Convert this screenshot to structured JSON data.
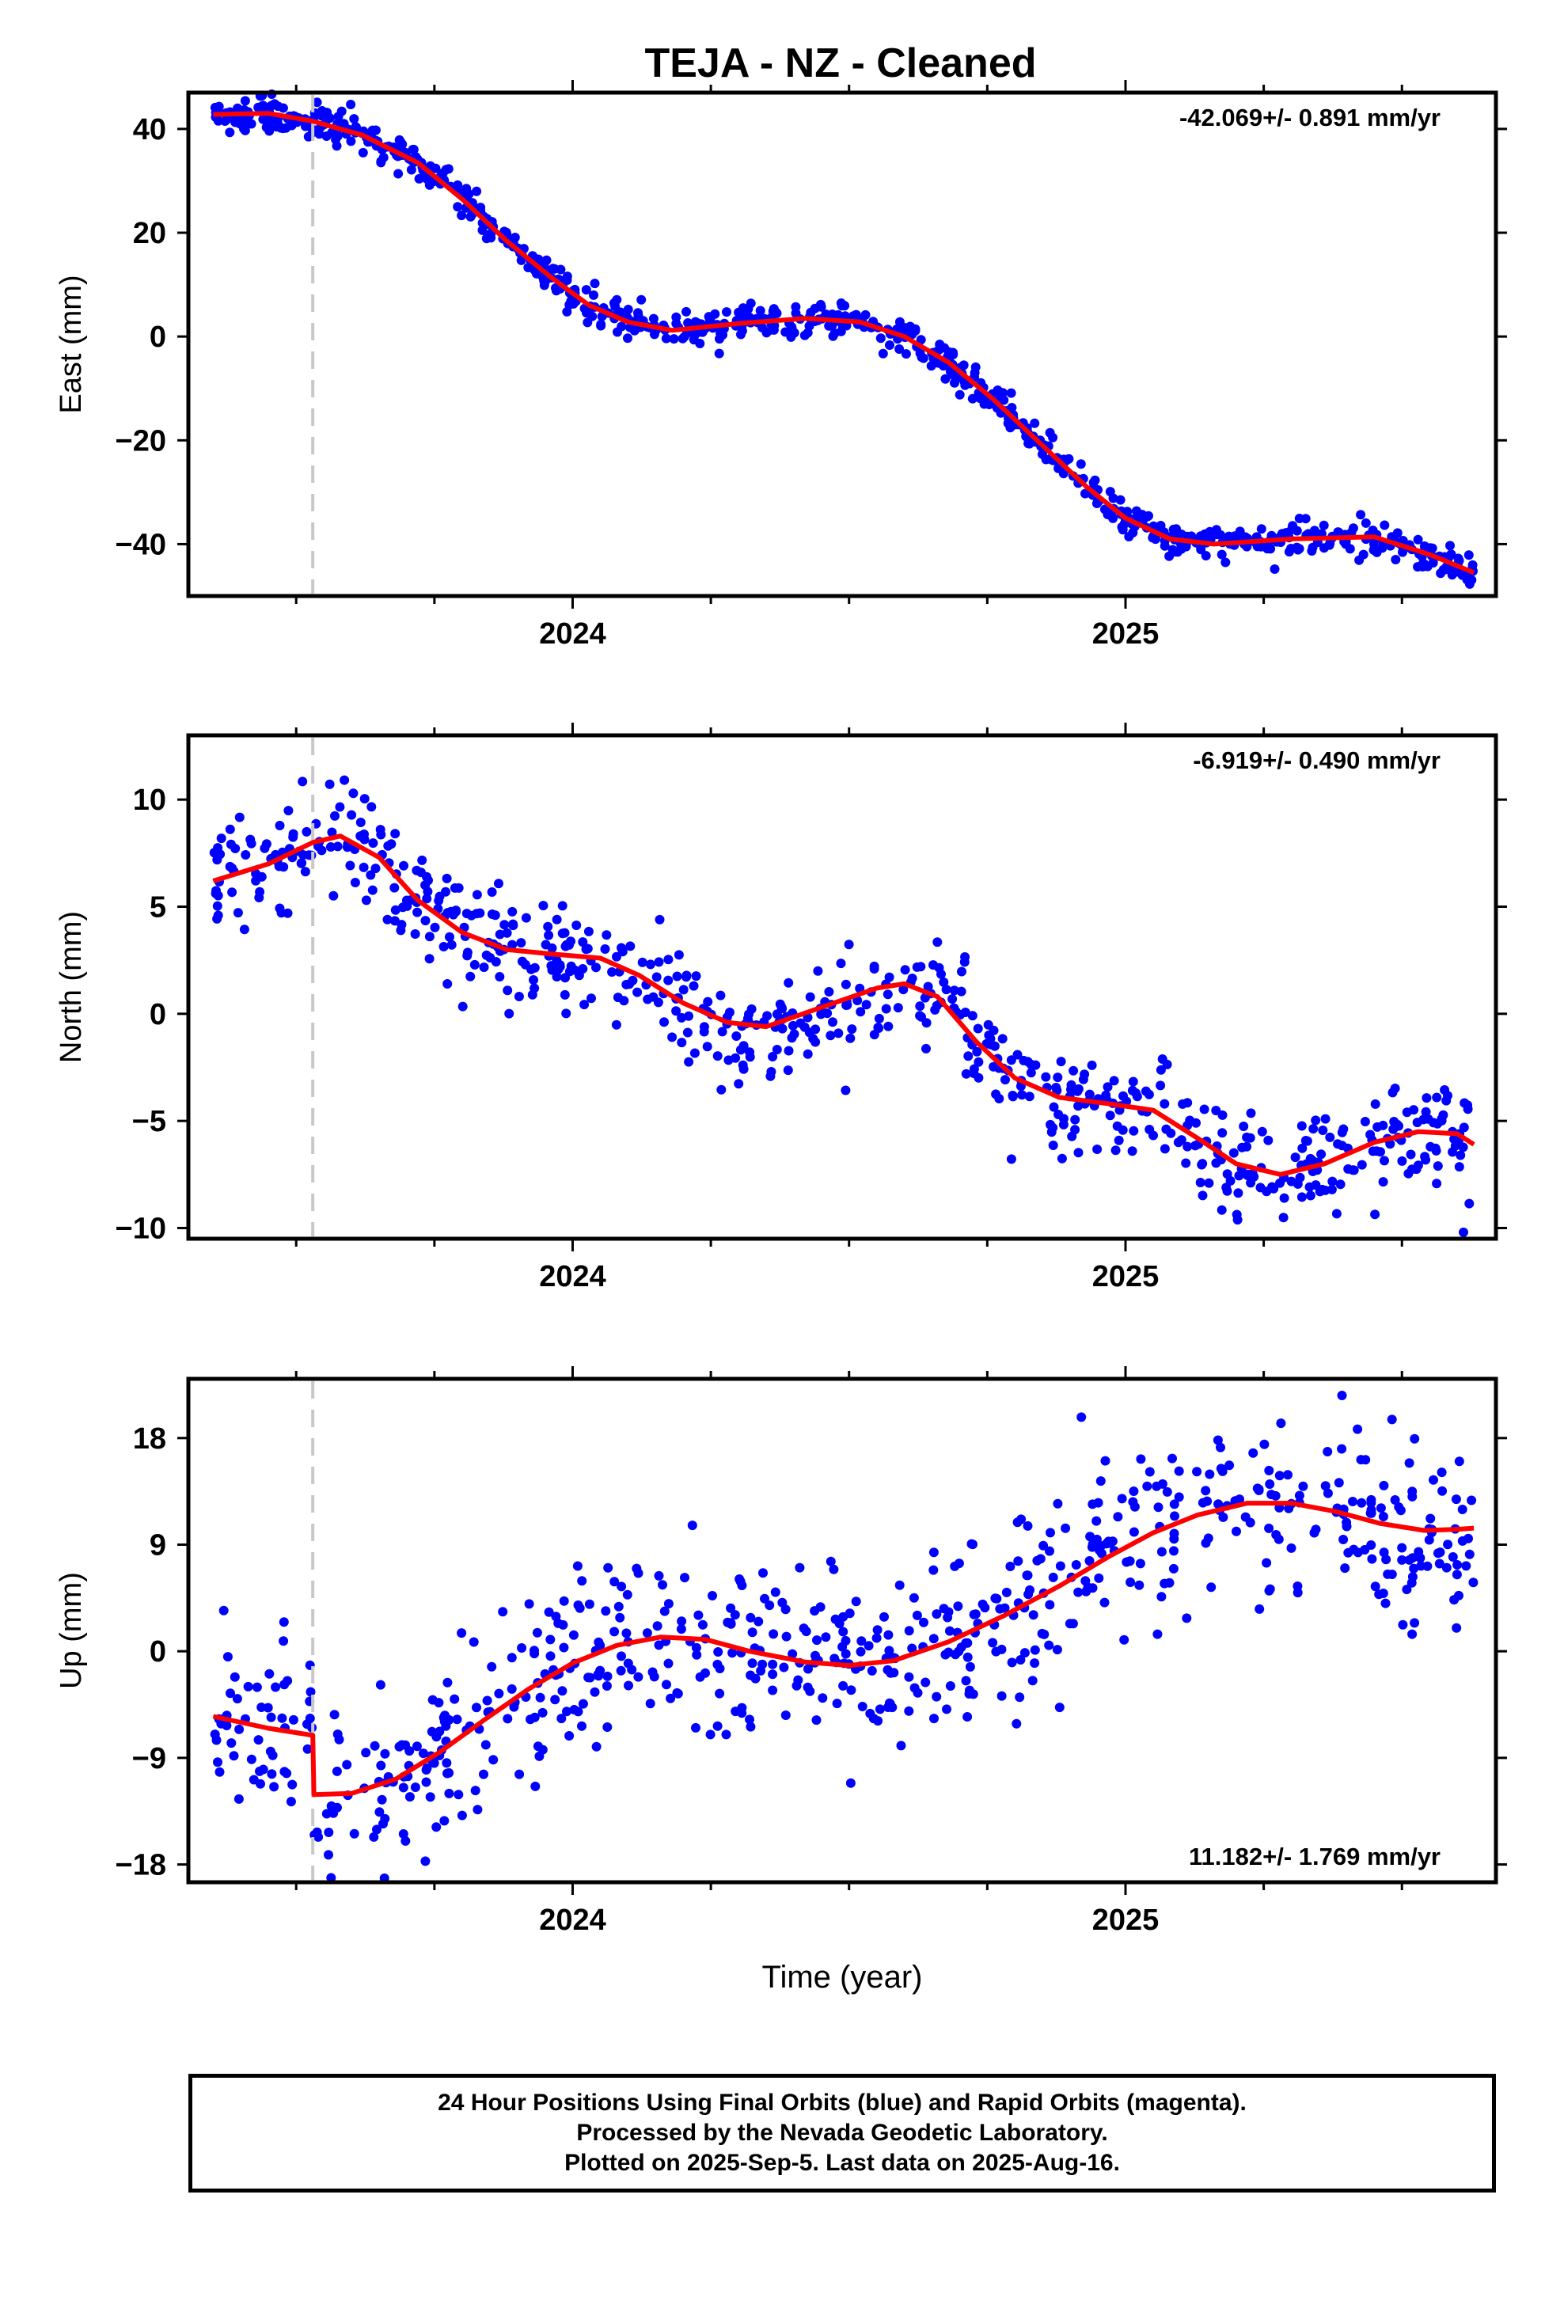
{
  "figure_title": "TEJA  - NZ - Cleaned",
  "footer": {
    "line1": "24 Hour Positions Using Final Orbits (blue) and Rapid Orbits (magenta).",
    "line2": "Processed by the Nevada Geodetic Laboratory.",
    "line3": "Plotted on 2025-Sep-5. Last data on 2025-Aug-16."
  },
  "colors": {
    "final_orbits": "#0000ff",
    "rapid_orbits": "#ff00ff",
    "model_fit": "#ff0000",
    "event_line": "#c8c8c8",
    "frame": "#000000"
  },
  "chart_data": [
    {
      "type": "scatter",
      "panel": "east",
      "ylabel": "East (mm)",
      "xlabel": "",
      "rate_label": "-42.069+/- 0.891 mm/yr",
      "rate_position": "top-right",
      "xlim": [
        2023.305,
        2025.67
      ],
      "ylim": [
        -50,
        47
      ],
      "yticks": [
        -40,
        -20,
        0,
        20,
        40
      ],
      "ytick_labels": [
        "−40",
        "−20",
        "0",
        "20",
        "40"
      ],
      "xticks": [
        2024,
        2025
      ],
      "xtick_labels": [
        "2024",
        "2025"
      ],
      "grid": false,
      "event_lines": [
        2023.53
      ],
      "scatter_density_per_year": 360,
      "scatter_noise_mm": 1.6,
      "fit_knots": [
        [
          2023.35,
          42.8
        ],
        [
          2023.45,
          43.0
        ],
        [
          2023.53,
          41.5
        ],
        [
          2023.62,
          38.8
        ],
        [
          2023.72,
          33.5
        ],
        [
          2023.8,
          26.5
        ],
        [
          2023.88,
          18.5
        ],
        [
          2023.96,
          11.5
        ],
        [
          2024.03,
          6.0
        ],
        [
          2024.1,
          2.8
        ],
        [
          2024.18,
          1.2
        ],
        [
          2024.3,
          2.5
        ],
        [
          2024.42,
          3.5
        ],
        [
          2024.52,
          2.8
        ],
        [
          2024.6,
          0.0
        ],
        [
          2024.68,
          -5.0
        ],
        [
          2024.76,
          -12.0
        ],
        [
          2024.85,
          -21.0
        ],
        [
          2024.93,
          -29.0
        ],
        [
          2025.0,
          -35.0
        ],
        [
          2025.08,
          -39.0
        ],
        [
          2025.16,
          -40.0
        ],
        [
          2025.3,
          -39.0
        ],
        [
          2025.45,
          -38.6
        ],
        [
          2025.55,
          -42.0
        ],
        [
          2025.63,
          -45.5
        ]
      ]
    },
    {
      "type": "scatter",
      "panel": "north",
      "ylabel": "North (mm)",
      "xlabel": "",
      "rate_label": "-6.919+/- 0.490 mm/yr",
      "rate_position": "top-right",
      "xlim": [
        2023.305,
        2025.67
      ],
      "ylim": [
        -10.5,
        13
      ],
      "yticks": [
        -10,
        -5,
        0,
        5,
        10
      ],
      "ytick_labels": [
        "−10",
        "−5",
        "0",
        "5",
        "10"
      ],
      "xticks": [
        2024,
        2025
      ],
      "xtick_labels": [
        "2024",
        "2025"
      ],
      "grid": false,
      "event_lines": [
        2023.53
      ],
      "scatter_density_per_year": 300,
      "scatter_noise_mm": 1.3,
      "fit_knots": [
        [
          2023.35,
          6.2
        ],
        [
          2023.45,
          7.0
        ],
        [
          2023.53,
          8.0
        ],
        [
          2023.58,
          8.3
        ],
        [
          2023.65,
          7.3
        ],
        [
          2023.72,
          5.3
        ],
        [
          2023.8,
          3.8
        ],
        [
          2023.88,
          3.0
        ],
        [
          2023.96,
          2.8
        ],
        [
          2024.05,
          2.6
        ],
        [
          2024.12,
          1.8
        ],
        [
          2024.2,
          0.5
        ],
        [
          2024.28,
          -0.4
        ],
        [
          2024.35,
          -0.6
        ],
        [
          2024.45,
          0.3
        ],
        [
          2024.55,
          1.2
        ],
        [
          2024.6,
          1.4
        ],
        [
          2024.66,
          0.8
        ],
        [
          2024.73,
          -1.3
        ],
        [
          2024.8,
          -3.0
        ],
        [
          2024.88,
          -3.9
        ],
        [
          2024.97,
          -4.2
        ],
        [
          2025.05,
          -4.5
        ],
        [
          2025.13,
          -5.8
        ],
        [
          2025.2,
          -7.0
        ],
        [
          2025.28,
          -7.5
        ],
        [
          2025.36,
          -7.0
        ],
        [
          2025.45,
          -6.0
        ],
        [
          2025.53,
          -5.5
        ],
        [
          2025.6,
          -5.6
        ],
        [
          2025.63,
          -6.1
        ]
      ]
    },
    {
      "type": "scatter",
      "panel": "up",
      "ylabel": "Up (mm)",
      "xlabel": "Time (year)",
      "rate_label": "11.182+/- 1.769 mm/yr",
      "rate_position": "bottom-right",
      "xlim": [
        2023.305,
        2025.67
      ],
      "ylim": [
        -19.5,
        23
      ],
      "yticks": [
        -18,
        -9,
        0,
        9,
        18
      ],
      "ytick_labels": [
        "−18",
        "−9",
        "0",
        "9",
        "18"
      ],
      "xticks": [
        2024,
        2025
      ],
      "xtick_labels": [
        "2024",
        "2025"
      ],
      "grid": false,
      "event_lines": [
        2023.53
      ],
      "scatter_density_per_year": 300,
      "scatter_noise_mm": 3.8,
      "fit_knots": [
        [
          2023.35,
          -5.5
        ],
        [
          2023.45,
          -6.5
        ],
        [
          2023.53,
          -7.1
        ],
        [
          2023.532,
          -12.1
        ],
        [
          2023.6,
          -12.0
        ],
        [
          2023.68,
          -10.8
        ],
        [
          2023.76,
          -8.5
        ],
        [
          2023.84,
          -5.8
        ],
        [
          2023.92,
          -3.2
        ],
        [
          2024.0,
          -1.0
        ],
        [
          2024.08,
          0.5
        ],
        [
          2024.16,
          1.2
        ],
        [
          2024.24,
          1.0
        ],
        [
          2024.32,
          0.0
        ],
        [
          2024.42,
          -0.9
        ],
        [
          2024.5,
          -1.2
        ],
        [
          2024.58,
          -0.8
        ],
        [
          2024.68,
          0.8
        ],
        [
          2024.78,
          3.0
        ],
        [
          2024.88,
          5.5
        ],
        [
          2024.97,
          8.0
        ],
        [
          2025.05,
          10.0
        ],
        [
          2025.13,
          11.5
        ],
        [
          2025.22,
          12.5
        ],
        [
          2025.3,
          12.5
        ],
        [
          2025.38,
          11.8
        ],
        [
          2025.46,
          10.8
        ],
        [
          2025.54,
          10.2
        ],
        [
          2025.6,
          10.3
        ],
        [
          2025.63,
          10.4
        ]
      ]
    }
  ]
}
